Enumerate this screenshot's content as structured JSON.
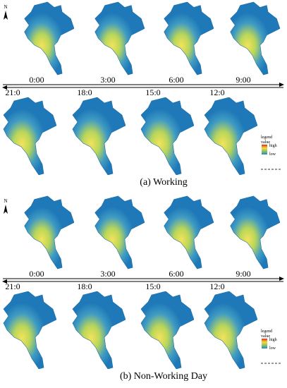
{
  "north": "N",
  "panels": [
    {
      "caption": "(a) Working",
      "top_times": [
        "0:00",
        "3:00",
        "6:00",
        "9:00"
      ],
      "bottom_times": [
        "21:0",
        "18:0",
        "15:0",
        "12:0"
      ],
      "legend": {
        "title": [
          "legend",
          "value"
        ],
        "high": "high",
        "low": "low"
      }
    },
    {
      "caption": "(b) Non-Working Day",
      "top_times": [
        "0:00",
        "3:00",
        "6:00",
        "9:00"
      ],
      "bottom_times": [
        "21:0",
        "18:0",
        "15:0",
        "12:0"
      ],
      "legend": {
        "title": [
          "legend",
          "value"
        ],
        "high": "high",
        "low": "low"
      }
    }
  ]
}
